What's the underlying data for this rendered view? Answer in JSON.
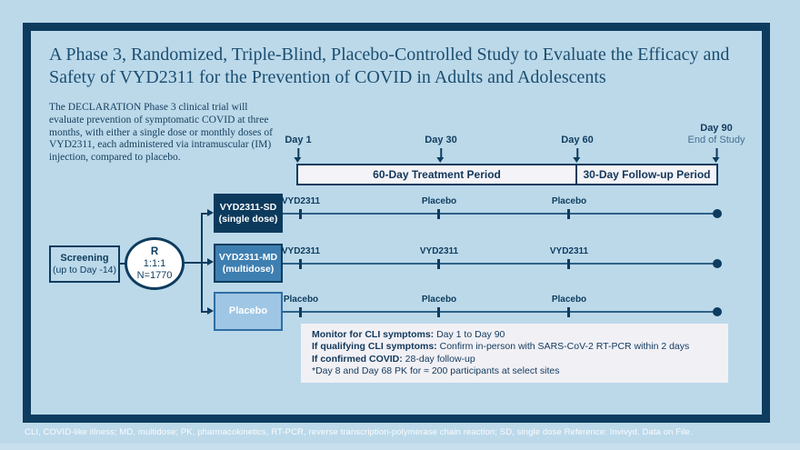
{
  "title": "A Phase 3, Randomized, Triple-Blind, Placebo-Controlled Study to Evaluate the Efficacy and Safety of VYD2311 for the Prevention of COVID in Adults and Adolescents",
  "description": "The DECLARATION Phase 3 clinical trial will evaluate prevention of symptomatic COVID at three months, with either a single dose or monthly doses of VYD2311, each administered via intramuscular (IM) injection, compared to placebo.",
  "timeline": {
    "milestones": [
      {
        "label": "Day 1",
        "sub": ""
      },
      {
        "label": "Day 30",
        "sub": ""
      },
      {
        "label": "Day 60",
        "sub": ""
      },
      {
        "label": "Day 90",
        "sub": "End of Study"
      }
    ],
    "periods": [
      {
        "label": "60-Day Treatment Period"
      },
      {
        "label": "30-Day Follow-up Period"
      }
    ]
  },
  "flow": {
    "screening": {
      "title": "Screening",
      "sub": "(up to Day -14)"
    },
    "randomization": {
      "r": "R",
      "ratio": "1:1:1",
      "n": "N=1770"
    },
    "arms": [
      {
        "name": "VYD2311-SD",
        "sub": "(single dose)",
        "doses": [
          "VYD2311",
          "Placebo",
          "Placebo"
        ]
      },
      {
        "name": "VYD2311-MD",
        "sub": "(multidose)",
        "doses": [
          "VYD2311",
          "VYD2311",
          "VYD2311"
        ]
      },
      {
        "name": "Placebo",
        "sub": "",
        "doses": [
          "Placebo",
          "Placebo",
          "Placebo"
        ]
      }
    ]
  },
  "monitor": {
    "lines": [
      {
        "bold": "Monitor for CLI symptoms:",
        "text": " Day 1 to Day 90"
      },
      {
        "bold": "If qualifying CLI symptoms:",
        "text": " Confirm in-person with SARS-CoV-2 RT-PCR within 2 days"
      },
      {
        "bold": "If confirmed COVID:",
        "text": " 28-day follow-up"
      },
      {
        "bold": "",
        "text": "*Day 8 and Day 68 PK for ≈ 200 participants at select sites"
      }
    ]
  },
  "footer": "CLI, COVID-like illness; MD, multidose; PK, pharmacokinetics, RT-PCR, reverse transcription-polymerase chain reaction; SD, single dose Reference: Invivyd. Data on File.",
  "colors": {
    "background": "#bcd9ea",
    "panel_border": "#0d3c5e",
    "accent_navy": "#0d3c5e",
    "arm_sd_fill": "#0c3a5c",
    "arm_md_fill": "#3e7fb1",
    "arm_placebo_fill": "#9fc6e4",
    "period_bar_fill": "#f4f3f7",
    "monitor_box_fill": "#f1f0f5",
    "footer_text": "#ffffff"
  }
}
